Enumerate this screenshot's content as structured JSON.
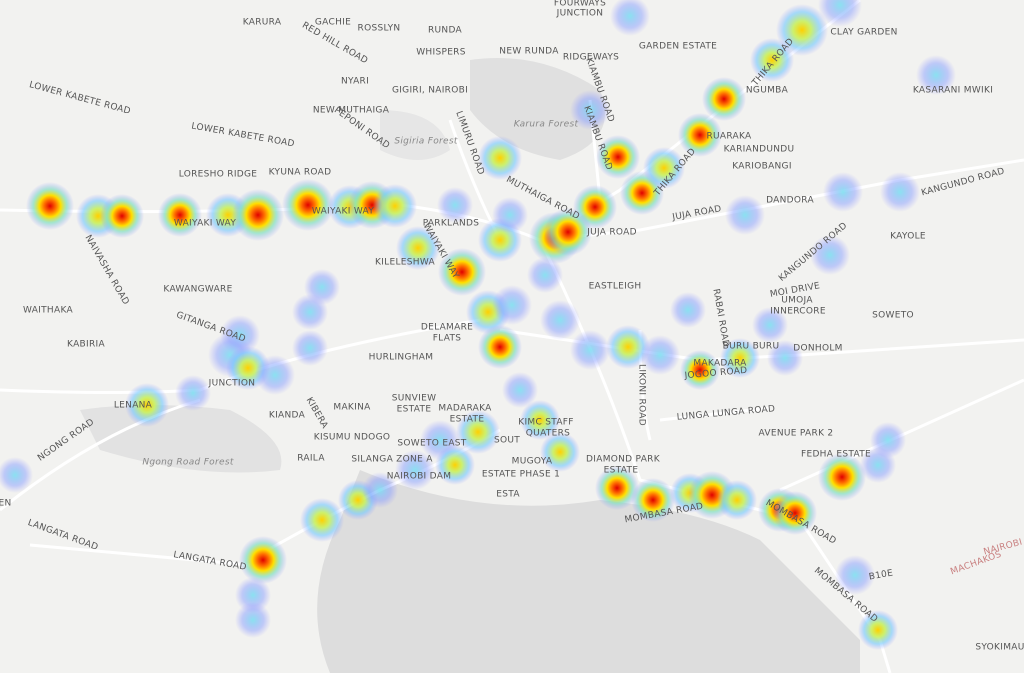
{
  "labels": [
    "KARURA",
    "GACHIE",
    "ROSSLYN",
    "RUNDA",
    "FOURWAYS",
    "JUNCTION",
    "GARDEN ESTATE",
    "CLAY GARDEN",
    "WHISPERS",
    "NEW RUNDA",
    "RIDGEWAYS",
    "RED HILL ROAD",
    "NYARI",
    "GIGIRI, NAIROBI",
    "NGUMBA",
    "KASARANI MWIKI",
    "LOWER KABETE ROAD",
    "LOWER KABETE ROAD",
    "NEW MUTHAIGA",
    "PEPONI ROAD",
    "Sigiria Forest",
    "Karura Forest",
    "LIMURU ROAD",
    "KIAMBU ROAD",
    "THIKA ROAD",
    "THIKA ROAD",
    "RUARAKA",
    "KARIANDUNDU",
    "KARIOBANGI",
    "LORESHO RIDGE",
    "KYUNA ROAD",
    "MUTHAIGA ROAD",
    "DANDORA",
    "KANGUNDO ROAD",
    "KANGUNDO ROAD",
    "WAIYAKI WAY",
    "WAIYAKI WAY",
    "WAIYAKI WAY",
    "PARKLANDS",
    "JUJA ROAD",
    "JUJA ROAD",
    "KAYOLE",
    "NAIVASHA ROAD",
    "KILELESHWA",
    "EASTLEIGH",
    "KAWANGWARE",
    "MOI DRIVE",
    "UMOJA",
    "INNERCORE",
    "SOWETO",
    "WAITHAKA",
    "DELAMARE",
    "FLATS",
    "KABIRIA",
    "GITANGA ROAD",
    "HURLINGHAM",
    "BURU BURU",
    "DONHOLM",
    "MAKADARA",
    "JOGOO ROAD",
    "JUNCTION",
    "LENANA",
    "KIANDA",
    "KIBERA",
    "MAKINA",
    "SUNVIEW",
    "ESTATE",
    "MADARAKA",
    "ESTATE",
    "LIKONI ROAD",
    "LUNGA LUNGA ROAD",
    "KIMC STAFF",
    "QUATERS",
    "AVENUE PARK 2",
    "NGONG ROAD",
    "KISUMU NDOGO",
    "SOWETO EAST",
    "SOUT",
    "Ngong Road Forest",
    "RAILA",
    "SILANGA ZONE A",
    "NAIROBI DAM",
    "MUGOYA",
    "ESTATE PHASE 1",
    "DIAMOND PARK",
    "ESTATE",
    "FEDHA ESTATE",
    "MOMBASA ROAD",
    "MOMBASA ROAD",
    "MOMBASA ROAD",
    "LANGATA ROAD",
    "LANGATA ROAD",
    "B10E",
    "SYOKIMAU",
    "NAIROBI",
    "MACHAKOS",
    "EN",
    "ESTA",
    "RABAI ROAD",
    "KIAMBU ROAD"
  ]
}
